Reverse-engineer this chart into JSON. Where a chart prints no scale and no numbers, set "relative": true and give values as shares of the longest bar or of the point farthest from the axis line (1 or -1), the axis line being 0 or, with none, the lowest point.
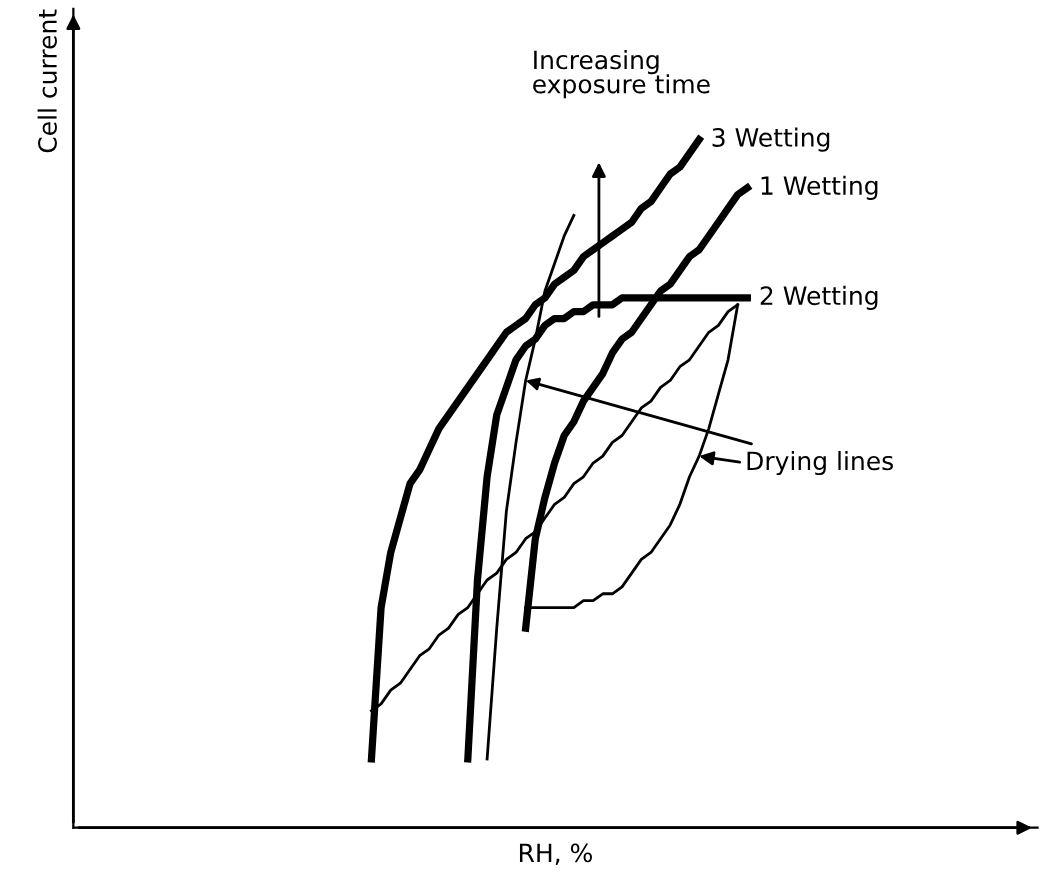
{
  "chart_data": {
    "type": "line",
    "relative": true,
    "xlabel": "RH, %",
    "marker": "none",
    "line_style": "solid",
    "categories": [
      null,
      null,
      null,
      null,
      null,
      null,
      null,
      null,
      null,
      null,
      null,
      null,
      null,
      null,
      null,
      null,
      null,
      null,
      null,
      null,
      null,
      null,
      null,
      null,
      null,
      null,
      null,
      null,
      null,
      null,
      null,
      null,
      null,
      null,
      null,
      null,
      null,
      null,
      null,
      null,
      null
    ],
    "series": [
      {
        "name": "3 Wetting",
        "color": "#000000",
        "values": [
          null,
          0.1,
          0.32,
          0.4,
          0.45,
          0.5,
          0.52,
          0.55,
          0.58,
          0.6,
          0.62,
          0.64,
          0.66,
          0.68,
          0.7,
          0.72,
          0.73,
          0.74,
          0.76,
          0.77,
          0.79,
          0.8,
          0.81,
          0.83,
          0.84,
          0.85,
          0.86,
          0.87,
          0.88,
          0.9,
          0.91,
          0.93,
          0.95,
          0.96,
          0.98,
          1.0,
          null,
          null,
          null,
          null,
          null
        ]
      },
      {
        "name": "1 Wetting",
        "color": "#000000",
        "values": [
          null,
          null,
          null,
          null,
          null,
          null,
          null,
          null,
          null,
          null,
          null,
          null,
          null,
          null,
          null,
          null,
          null,
          0.29,
          0.42,
          0.48,
          0.53,
          0.57,
          0.59,
          0.62,
          0.64,
          0.66,
          0.69,
          0.71,
          0.72,
          0.74,
          0.76,
          0.78,
          0.79,
          0.81,
          0.83,
          0.84,
          0.86,
          0.88,
          0.9,
          0.92,
          0.93
        ]
      },
      {
        "name": "2 Wetting",
        "color": "#000000",
        "values": [
          null,
          null,
          null,
          null,
          null,
          null,
          null,
          null,
          null,
          null,
          null,
          0.1,
          0.36,
          0.51,
          0.6,
          0.64,
          0.68,
          0.7,
          0.71,
          0.73,
          0.74,
          0.74,
          0.75,
          0.75,
          0.76,
          0.76,
          0.76,
          0.77,
          0.77,
          0.77,
          0.77,
          0.77,
          0.77,
          0.77,
          0.77,
          0.77,
          0.77,
          0.77,
          0.77,
          0.77,
          0.77
        ]
      },
      {
        "color": "#000000",
        "values": [
          null,
          0.17,
          0.18,
          0.2,
          0.21,
          0.23,
          0.25,
          0.26,
          0.28,
          0.29,
          0.31,
          0.32,
          0.34,
          0.36,
          0.37,
          0.39,
          0.4,
          0.42,
          0.43,
          0.45,
          0.47,
          0.48,
          0.5,
          0.51,
          0.53,
          0.54,
          0.56,
          0.57,
          0.59,
          0.61,
          0.62,
          0.64,
          0.65,
          0.67,
          0.68,
          0.7,
          0.72,
          0.73,
          0.75,
          0.76,
          null
        ]
      },
      {
        "color": "#000000",
        "values": [
          null,
          null,
          null,
          null,
          null,
          null,
          null,
          null,
          null,
          null,
          null,
          null,
          null,
          null,
          null,
          null,
          null,
          0.32,
          0.32,
          0.32,
          0.32,
          0.32,
          0.32,
          0.33,
          0.33,
          0.34,
          0.34,
          0.35,
          0.37,
          0.39,
          0.4,
          0.42,
          0.44,
          0.47,
          0.51,
          0.54,
          0.58,
          0.63,
          0.68,
          0.76,
          null
        ]
      },
      {
        "color": "#000000",
        "values": [
          null,
          null,
          null,
          null,
          null,
          null,
          null,
          null,
          null,
          null,
          null,
          null,
          null,
          0.1,
          0.29,
          0.46,
          0.56,
          0.65,
          0.71,
          0.78,
          0.82,
          0.86,
          0.89,
          null,
          null,
          null,
          null,
          null,
          null,
          null,
          null,
          null,
          null,
          null,
          null,
          null,
          null,
          null,
          null,
          null,
          null
        ]
      }
    ],
    "annotations": [
      "Increasing\nexposure time",
      "Drying lines",
      "Cell current"
    ]
  }
}
